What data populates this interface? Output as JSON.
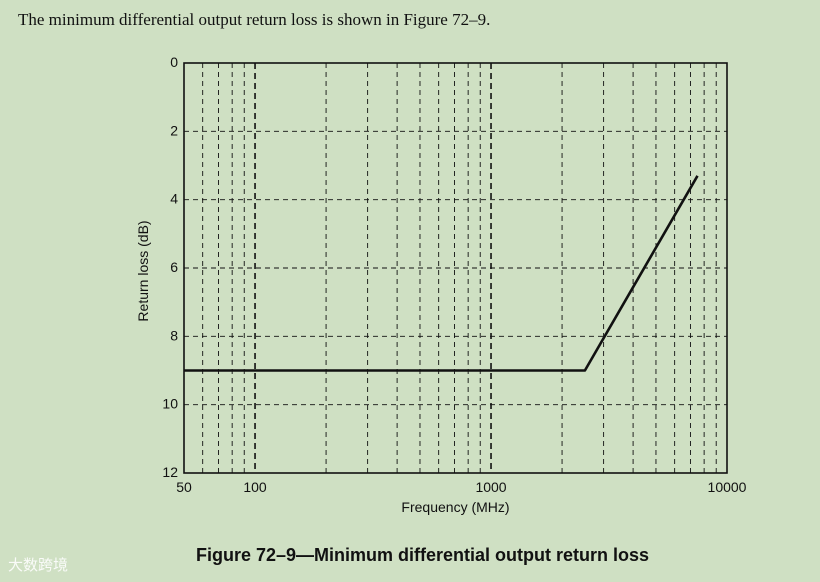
{
  "intro_text": "The minimum differential output return loss is shown in Figure 72–9.",
  "caption": "Figure 72–9—Minimum differential output return loss",
  "watermark": "大数跨境",
  "chart_data": {
    "type": "line",
    "title": "",
    "xlabel": "Frequency (MHz)",
    "ylabel": "Return loss (dB)",
    "x_scale": "log",
    "xlim": [
      50,
      10000
    ],
    "ylim": [
      0,
      12
    ],
    "y_inverted": true,
    "grid": true,
    "x_ticks": [
      {
        "value": 50,
        "label": "50"
      },
      {
        "value": 100,
        "label": "100"
      },
      {
        "value": 1000,
        "label": "1000"
      },
      {
        "value": 10000,
        "label": "10000"
      }
    ],
    "y_ticks": [
      {
        "value": 0,
        "label": "0"
      },
      {
        "value": 2,
        "label": "2"
      },
      {
        "value": 4,
        "label": "4"
      },
      {
        "value": 6,
        "label": "6"
      },
      {
        "value": 8,
        "label": "8"
      },
      {
        "value": 10,
        "label": "10"
      },
      {
        "value": 12,
        "label": "12"
      }
    ],
    "series": [
      {
        "points": [
          {
            "x": 50,
            "y": 9
          },
          {
            "x": 2500,
            "y": 9
          },
          {
            "x": 7500,
            "y": 3.3
          }
        ]
      }
    ]
  }
}
